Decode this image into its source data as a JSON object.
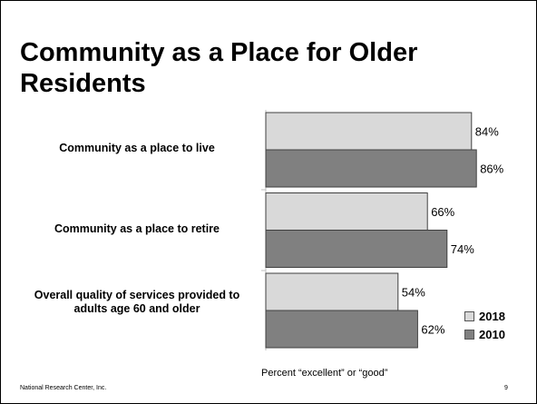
{
  "title": "Community as a Place for Older Residents",
  "footer": "National Research Center, Inc.",
  "page_number": "9",
  "chart_data": {
    "type": "bar",
    "orientation": "horizontal",
    "categories": [
      "Community as a place to live",
      "Community as a place to retire",
      "Overall quality of services provided to adults age 60 and older"
    ],
    "series": [
      {
        "name": "2018",
        "values": [
          84,
          66,
          54
        ],
        "color": "#d9d9d9"
      },
      {
        "name": "2010",
        "values": [
          86,
          74,
          62
        ],
        "color": "#808080"
      }
    ],
    "value_labels": {
      "2018": [
        "84%",
        "66%",
        "54%"
      ],
      "2010": [
        "86%",
        "74%",
        "62%"
      ]
    },
    "xlabel": "Percent “excellent” or “good”",
    "xlim": [
      0,
      100
    ],
    "legend_position": "bottom-right",
    "grid": false
  }
}
